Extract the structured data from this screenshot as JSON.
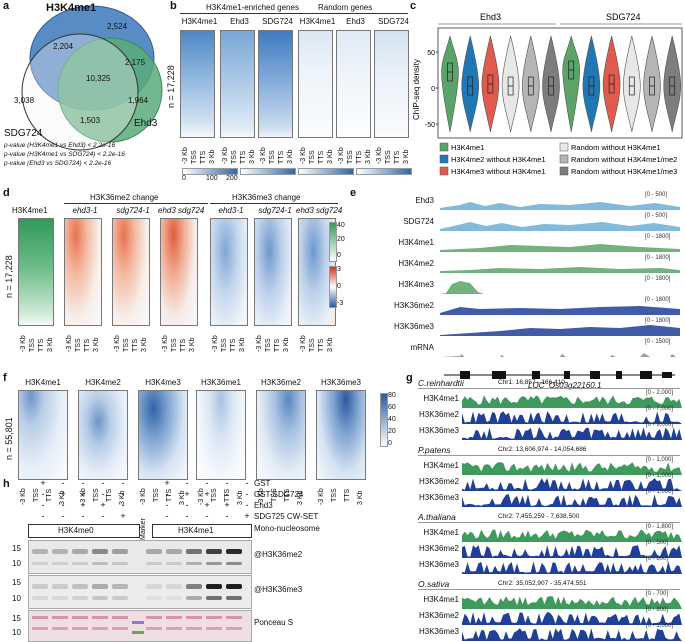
{
  "panel_labels": {
    "a": "a",
    "b": "b",
    "c": "c",
    "d": "d",
    "e": "e",
    "f": "f",
    "g": "g",
    "h": "h"
  },
  "panel_a": {
    "sets": {
      "h3k4me1": "H3K4me1",
      "sdg724": "SDG724",
      "ehd3": "Ehd3"
    },
    "counts": {
      "top": "2,524",
      "left": "2,204",
      "right": "2,175",
      "center": "10,325",
      "far_left": "3,038",
      "bottom_right": "1,964",
      "bottom": "1,503"
    },
    "pvalues": [
      "p-value (H3K4me1 vs Ehd3) < 2.2e-16",
      "p-value (H3K4me1 vs SDG724) < 2.2e-16",
      "p-value (Ehd3 vs SDG724) < 2.2e-16"
    ]
  },
  "panel_b": {
    "group1": "H3K4me1-enriched genes",
    "group2": "Random genes",
    "columns": [
      "H3K4me1",
      "Ehd3",
      "SDG724",
      "H3K4me1",
      "Ehd3",
      "SDG724"
    ],
    "n_label": "n = 17,228",
    "ticks": [
      "-3 Kb",
      "TSS",
      "TTS",
      "3 Kb"
    ],
    "scale": [
      "0",
      "100",
      "200"
    ]
  },
  "panel_c": {
    "group1": "Ehd3",
    "group2": "SDG724",
    "ylabel": "ChIP-seq density",
    "yticks": [
      "50",
      "0",
      "-50"
    ],
    "legend": [
      "H3K4me1",
      "H3K4me2 without H3K4me1",
      "H3K4me3 without H3K4me1",
      "Random without H3K4me1",
      "Random without H3K4me1/me2",
      "Random without H3K4me1/me3"
    ],
    "colors": [
      "#5aa469",
      "#1f77b4",
      "#e05a4e",
      "#e8e8e8",
      "#b5b5b5",
      "#7d7d7d"
    ]
  },
  "panel_d": {
    "first": "H3K4me1",
    "group1": "H3K36me2 change",
    "group2": "H3K36me3 change",
    "columns": [
      "ehd3-1",
      "sdg724-1",
      "ehd3 sdg724",
      "ehd3-1",
      "sdg724-1",
      "ehd3 sdg724"
    ],
    "n_label": "n = 17,228",
    "scale_top": [
      "40",
      "20",
      "0"
    ],
    "scale_bot": [
      "3",
      "0",
      "-3"
    ],
    "ticks": [
      "-3 Kb",
      "TSS",
      "TTS",
      "3 Kb"
    ]
  },
  "panel_e": {
    "tracks": [
      {
        "name": "Ehd3",
        "range": "[0 - 500]",
        "color": "#6baed6"
      },
      {
        "name": "SDG724",
        "range": "[0 - 500]",
        "color": "#6baed6"
      },
      {
        "name": "H3K4me1",
        "range": "[0 - 1800]",
        "color": "#5aa469"
      },
      {
        "name": "H3K4me2",
        "range": "[0 - 1800]",
        "color": "#5aa469"
      },
      {
        "name": "H3K4me3",
        "range": "[0 - 1800]",
        "color": "#5aa469"
      },
      {
        "name": "H3K36me2",
        "range": "[0 - 1800]",
        "color": "#1f3f99"
      },
      {
        "name": "H3K36me3",
        "range": "[0 - 1800]",
        "color": "#1f3f99"
      },
      {
        "name": "mRNA",
        "range": "[0 - 1500]",
        "color": "#888888"
      }
    ],
    "gene": "LOC_Os03g22160.1"
  },
  "panel_f": {
    "columns": [
      "H3K4me1",
      "H3K4me2",
      "H3K4me3",
      "H3K36me1",
      "H3K36me2",
      "H3K36me3"
    ],
    "n_label": "n = 55,801",
    "ticks": [
      "-3 Kb",
      "TSS",
      "TTS",
      "3 Kb"
    ],
    "scale": [
      "80",
      "60",
      "40",
      "20",
      "0"
    ]
  },
  "panel_g": {
    "species": [
      {
        "name": "C.reinhardtii",
        "coords": "Chr1: 16,857 - 166,410",
        "ranges": [
          "[0 - 2,000]",
          "[0 - 7,000]",
          "[0 - 9,000]"
        ]
      },
      {
        "name": "P.patens",
        "coords": "Chr2: 13,606,974 - 14,054,686",
        "ranges": [
          "[0 - 1,000]",
          "[0 - 1,000]",
          "[0 - 1,000]"
        ]
      },
      {
        "name": "A.thaliana",
        "coords": "Chr2: 7,455,259 - 7,638,500",
        "ranges": [
          "[0 - 1,800]",
          "[0 - 500]",
          "[0 - 800]"
        ]
      },
      {
        "name": "O.sativa",
        "coords": "Chr2: 35,052,907 - 35,474,551",
        "ranges": [
          "[0 - 700]",
          "[0 - 800]",
          "[0 - 1,000]"
        ]
      }
    ],
    "marks": [
      "H3K4me1",
      "H3K36me2",
      "H3K36me3"
    ]
  },
  "panel_h": {
    "rows": [
      "GST",
      "GST-SDG724",
      "Ehd3",
      "SDG725 CW-SET",
      "Mono-nucleosome"
    ],
    "signs": [
      [
        "+",
        "-",
        "-",
        "-",
        "-",
        "",
        "+",
        "-",
        "-",
        "-",
        "-"
      ],
      [
        "-",
        "+",
        "+",
        "-",
        "-",
        "",
        "-",
        "+",
        "+",
        "-",
        "-"
      ],
      [
        "-",
        "-",
        "+",
        "+",
        "-",
        "",
        "-",
        "-",
        "+",
        "+",
        "-"
      ],
      [
        "-",
        "-",
        "-",
        "-",
        "+",
        "",
        "-",
        "-",
        "-",
        "-",
        "+"
      ]
    ],
    "nuc1": "H3K4me0",
    "nuc2": "H3K4me1",
    "marker": "Marker",
    "blots": [
      "@H3K36me2",
      "@H3K36me3",
      "Ponceau S"
    ],
    "mw": [
      "15",
      "10",
      "15",
      "10",
      "15",
      "10"
    ]
  }
}
